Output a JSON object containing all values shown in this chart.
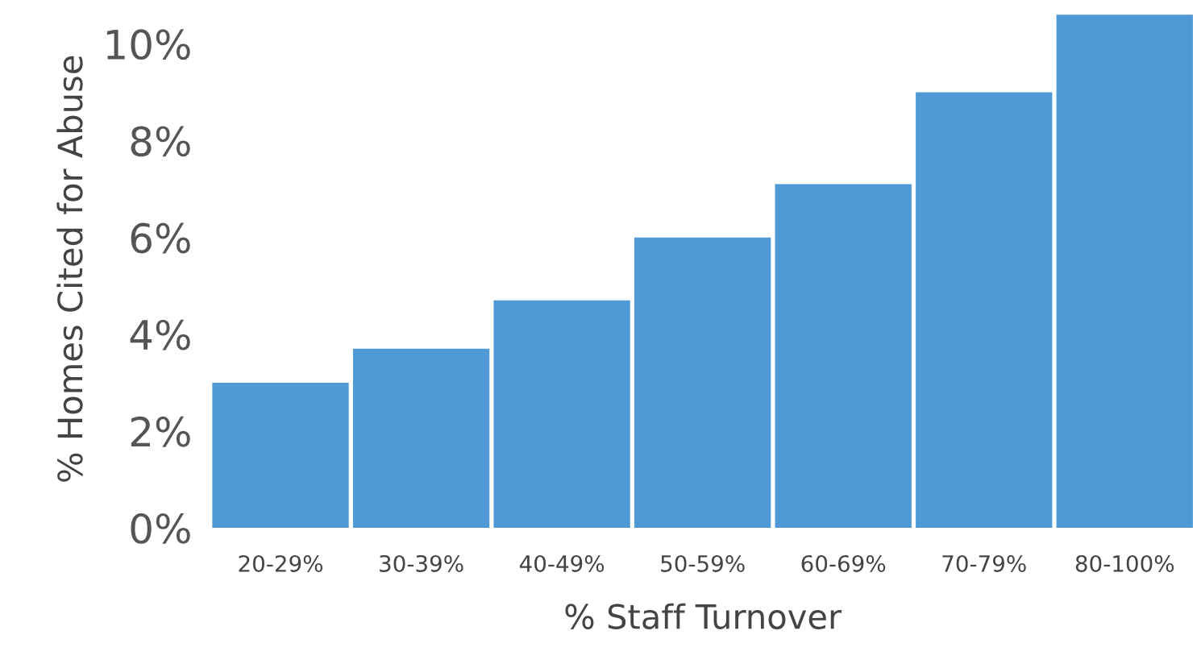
{
  "chart_data": {
    "type": "bar",
    "xlabel": "% Staff Turnover",
    "ylabel": "% Homes Cited for Abuse",
    "categories": [
      "20-29%",
      "30-39%",
      "40-49%",
      "50-59%",
      "60-69%",
      "70-79%",
      "80-100%"
    ],
    "values": [
      3.0,
      3.7,
      4.7,
      6.0,
      7.1,
      9.0,
      10.6
    ],
    "color": "#4f9ad6",
    "ylim": [
      0,
      10.7
    ],
    "yticks": [
      {
        "value": 0,
        "label": "0%"
      },
      {
        "value": 2,
        "label": "2%"
      },
      {
        "value": 4,
        "label": "4%"
      },
      {
        "value": 6,
        "label": "6%"
      },
      {
        "value": 8,
        "label": "8%"
      },
      {
        "value": 10,
        "label": "10%"
      }
    ],
    "grid": false
  }
}
